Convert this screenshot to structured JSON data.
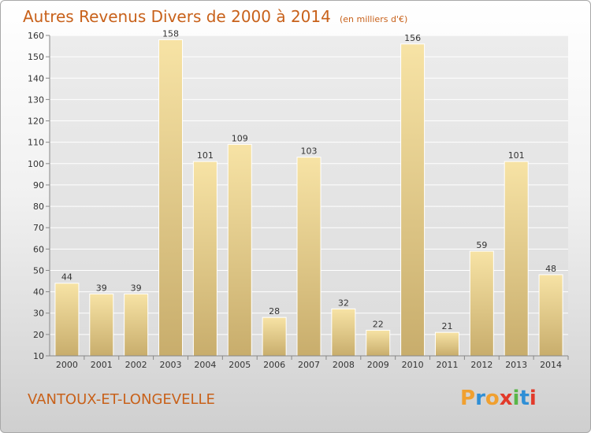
{
  "header": {
    "title": "Autres Revenus Divers de 2000 à 2014",
    "subtitle": "(en milliers d'€)"
  },
  "footer": {
    "place": "VANTOUX-ET-LONGEVELLE",
    "logo_text": "Proxiti"
  },
  "colors": {
    "title": "#c8611a",
    "bar_top": "#f7e3a5",
    "bar_bottom": "#c8ad6c",
    "logo": [
      "#f0a030",
      "#2f8fd6",
      "#f0a030",
      "#e23a2a",
      "#58b648",
      "#2f8fd6",
      "#e23a2a"
    ]
  },
  "chart_data": {
    "type": "bar",
    "categories": [
      "2000",
      "2001",
      "2002",
      "2003",
      "2004",
      "2005",
      "2006",
      "2007",
      "2008",
      "2009",
      "2010",
      "2011",
      "2012",
      "2013",
      "2014"
    ],
    "values": [
      44,
      39,
      39,
      158,
      101,
      109,
      28,
      103,
      32,
      22,
      156,
      21,
      59,
      101,
      48
    ],
    "title": "Autres Revenus Divers de 2000 à 2014",
    "xlabel": "",
    "ylabel": "",
    "ylim": [
      10,
      160
    ],
    "yticks": [
      10,
      20,
      30,
      40,
      50,
      60,
      70,
      80,
      90,
      100,
      110,
      120,
      130,
      140,
      150,
      160
    ],
    "grid": true,
    "legend": "none"
  }
}
